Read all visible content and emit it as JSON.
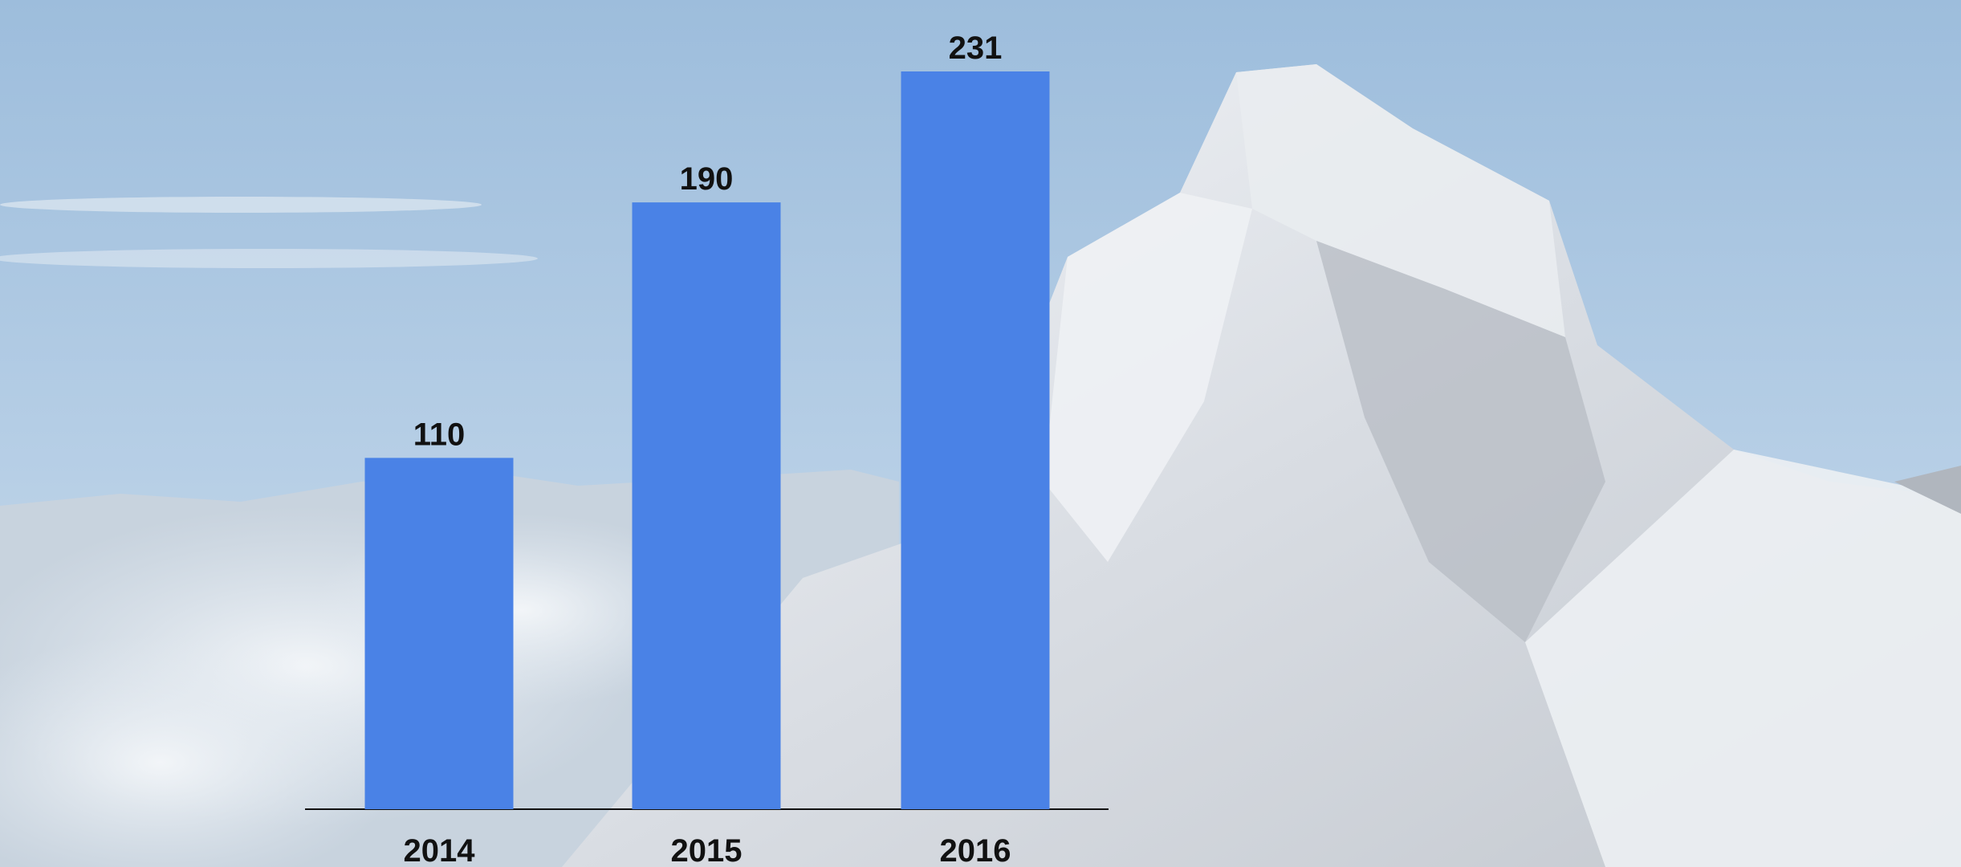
{
  "chart_data": {
    "type": "bar",
    "categories": [
      "2014",
      "2015",
      "2016"
    ],
    "values": [
      110,
      190,
      231
    ],
    "color": "#4a82e6"
  }
}
